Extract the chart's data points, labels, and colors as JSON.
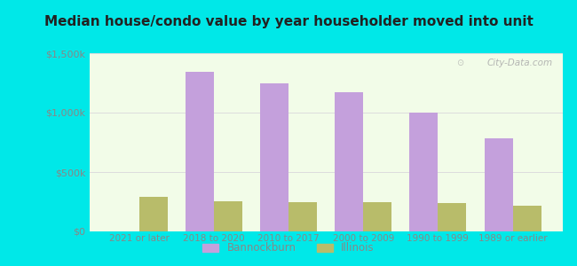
{
  "title": "Median house/condo value by year householder moved into unit",
  "categories": [
    "2021 or later",
    "2018 to 2020",
    "2010 to 2017",
    "2000 to 2009",
    "1990 to 1999",
    "1989 or earlier"
  ],
  "bannockburn_values": [
    0,
    1340000,
    1250000,
    1170000,
    1000000,
    780000
  ],
  "illinois_values": [
    290000,
    255000,
    245000,
    245000,
    240000,
    215000
  ],
  "bannockburn_color": "#c4a0dc",
  "illinois_color": "#b8bc6a",
  "background_outer": "#00e8e8",
  "background_inner": "#f2fce8",
  "title_color": "#222222",
  "tick_color": "#888888",
  "gridline_color": "#dddddd",
  "watermark": "City-Data.com",
  "ylim": [
    0,
    1500000
  ],
  "yticks": [
    0,
    500000,
    1000000,
    1500000
  ],
  "ytick_labels": [
    "$0",
    "$500k",
    "$1,000k",
    "$1,500k"
  ],
  "bar_width": 0.38,
  "legend_bannockburn": "Bannockburn",
  "legend_illinois": "Illinois"
}
